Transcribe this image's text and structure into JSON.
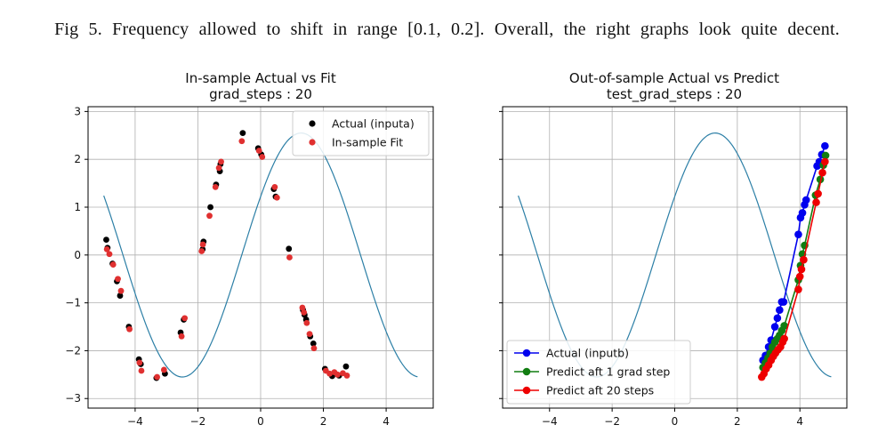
{
  "caption": "Fig 5. Frequency allowed to shift in range [0.1, 0.2]. Overall, the right graphs look quite decent.",
  "colors": {
    "curve": "#2c7fa6",
    "actual_a": "#000000",
    "fit": "#e03030",
    "actual_b": "#0000ee",
    "predict1": "#117d11",
    "predict20": "#ee0000",
    "grid": "#b0b0b0"
  },
  "chart_data": [
    {
      "type": "scatter",
      "title_line1": "In-sample Actual vs Fit",
      "title_line2": "grad_steps : 20",
      "xlim": [
        -5.5,
        5.5
      ],
      "ylim": [
        -3.2,
        3.1
      ],
      "xticks": [
        -4,
        -2,
        0,
        2,
        4
      ],
      "yticks": [
        3,
        2,
        1,
        0,
        -1,
        -2,
        -3
      ],
      "xtick_labels": [
        "−4",
        "−2",
        "0",
        "2",
        "4"
      ],
      "ytick_labels": [
        "3",
        "2",
        "1",
        "0",
        "−1",
        "−2",
        "−3"
      ],
      "grid": true,
      "legend_position": "top-right",
      "curve": {
        "amplitude": 2.55,
        "frequency": 0.83,
        "phase": 0.5,
        "x_range": [
          -5,
          5
        ]
      },
      "series": [
        {
          "name": "Actual (inputa)",
          "marker": "dot",
          "color": "#000000",
          "x": [
            -4.92,
            -4.88,
            -4.72,
            -4.58,
            -4.48,
            -4.2,
            -3.88,
            -3.82,
            -3.32,
            -3.05,
            -2.55,
            -2.45,
            -1.85,
            -1.82,
            -1.6,
            -1.42,
            -1.3,
            -1.28,
            -0.57,
            -0.08,
            0.02,
            0.42,
            0.48,
            0.9,
            1.35,
            1.4,
            1.45,
            1.58,
            1.68,
            2.05,
            2.28,
            2.5,
            2.72
          ],
          "y": [
            0.32,
            0.15,
            -0.18,
            -0.55,
            -0.85,
            -1.5,
            -2.18,
            -2.28,
            -2.57,
            -2.48,
            -1.62,
            -1.35,
            0.12,
            0.28,
            1.0,
            1.47,
            1.75,
            1.9,
            2.55,
            2.23,
            2.1,
            1.38,
            1.22,
            0.13,
            -1.15,
            -1.25,
            -1.35,
            -1.7,
            -1.85,
            -2.38,
            -2.53,
            -2.52,
            -2.33
          ]
        },
        {
          "name": "In-sample Fit",
          "marker": "dot",
          "color": "#e03030",
          "x": [
            -4.9,
            -4.82,
            -4.7,
            -4.55,
            -4.45,
            -4.18,
            -3.86,
            -3.8,
            -3.3,
            -3.08,
            -2.52,
            -2.42,
            -1.88,
            -1.84,
            -1.63,
            -1.44,
            -1.33,
            -1.26,
            -0.6,
            -0.05,
            0.05,
            0.45,
            0.52,
            0.92,
            1.33,
            1.38,
            1.47,
            1.56,
            1.7,
            2.08,
            2.2,
            2.35,
            2.45,
            2.62,
            2.75
          ],
          "y": [
            0.12,
            0.02,
            -0.2,
            -0.5,
            -0.75,
            -1.55,
            -2.25,
            -2.42,
            -2.55,
            -2.4,
            -1.7,
            -1.32,
            0.08,
            0.22,
            0.82,
            1.42,
            1.82,
            1.95,
            2.38,
            2.18,
            2.05,
            1.42,
            1.2,
            -0.05,
            -1.1,
            -1.2,
            -1.42,
            -1.65,
            -1.95,
            -2.42,
            -2.48,
            -2.45,
            -2.5,
            -2.47,
            -2.52
          ]
        }
      ]
    },
    {
      "type": "line",
      "title_line1": "Out-of-sample Actual vs Predict",
      "title_line2": "test_grad_steps : 20",
      "xlim": [
        -5.5,
        5.5
      ],
      "ylim": [
        -3.2,
        3.1
      ],
      "xticks": [
        -4,
        -2,
        0,
        2,
        4
      ],
      "yticks": [
        3,
        2,
        1,
        0,
        -1,
        -2,
        -3
      ],
      "xtick_labels": [
        "−4",
        "−2",
        "0",
        "2",
        "4"
      ],
      "grid": true,
      "legend_position": "bottom-left",
      "curve": {
        "amplitude": 2.55,
        "frequency": 0.83,
        "phase": 0.5,
        "x_range": [
          -5,
          5
        ]
      },
      "series": [
        {
          "name": "Actual (inputb)",
          "marker": "line-dot",
          "color": "#0000ee",
          "x": [
            2.82,
            2.9,
            3.0,
            3.08,
            3.2,
            3.28,
            3.35,
            3.42,
            3.48,
            3.95,
            4.02,
            4.08,
            4.15,
            4.2,
            4.55,
            4.62,
            4.7,
            4.8
          ],
          "y": [
            -2.2,
            -2.1,
            -1.92,
            -1.78,
            -1.5,
            -1.32,
            -1.15,
            -0.98,
            -0.98,
            0.43,
            0.78,
            0.88,
            1.05,
            1.15,
            1.86,
            1.95,
            2.1,
            2.28
          ]
        },
        {
          "name": "Predict aft 1 grad step",
          "marker": "line-dot",
          "color": "#117d11",
          "x": [
            2.82,
            2.9,
            2.98,
            3.05,
            3.12,
            3.2,
            3.28,
            3.35,
            3.42,
            3.5,
            3.95,
            4.02,
            4.08,
            4.15,
            4.5,
            4.65,
            4.75,
            4.82
          ],
          "y": [
            -2.35,
            -2.25,
            -2.15,
            -2.05,
            -1.92,
            -1.82,
            -1.75,
            -1.68,
            -1.58,
            -1.48,
            -0.52,
            -0.22,
            0.02,
            0.2,
            1.25,
            1.58,
            1.88,
            2.08
          ]
        },
        {
          "name": "Predict aft 20 steps",
          "marker": "line-dot",
          "color": "#ee0000",
          "x": [
            2.78,
            2.85,
            2.92,
            3.0,
            3.08,
            3.15,
            3.22,
            3.3,
            3.38,
            3.45,
            3.5,
            3.95,
            4.0,
            4.05,
            4.12,
            4.52,
            4.58,
            4.72,
            4.8
          ],
          "y": [
            -2.55,
            -2.48,
            -2.38,
            -2.3,
            -2.2,
            -2.12,
            -2.05,
            -1.98,
            -1.92,
            -1.82,
            -1.75,
            -0.72,
            -0.45,
            -0.3,
            -0.1,
            1.1,
            1.28,
            1.72,
            1.95
          ]
        }
      ]
    }
  ]
}
